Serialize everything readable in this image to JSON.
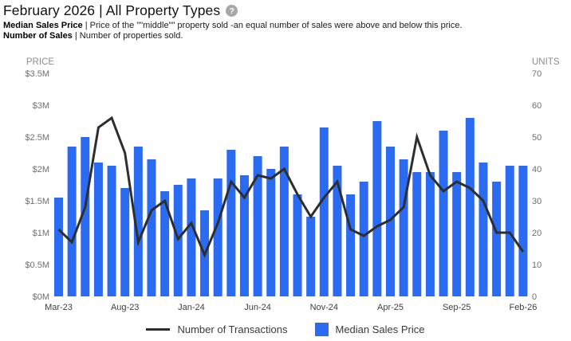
{
  "header": {
    "title": "February 2026 | All Property Types",
    "help_glyph": "?"
  },
  "description": {
    "line1_term": "Median Sales Price",
    "line1_def": "| Price of the \"\"middle\"\" property sold -an equal number of sales were above and below this price.",
    "line2_term": "Number of Sales",
    "line2_def": "| Number of properties sold."
  },
  "legend": {
    "items": [
      {
        "label": "Number of Transactions",
        "swatch": "line",
        "color": "#2e2e2e"
      },
      {
        "label": "Median Sales Price",
        "swatch": "square",
        "color": "#2a6bf2"
      }
    ]
  },
  "chart_data": {
    "type": "bar",
    "categories": [
      "Mar-23",
      "Apr-23",
      "May-23",
      "Jun-23",
      "Jul-23",
      "Aug-23",
      "Sep-23",
      "Oct-23",
      "Nov-23",
      "Dec-23",
      "Jan-24",
      "Feb-24",
      "Mar-24",
      "Apr-24",
      "May-24",
      "Jun-24",
      "Jul-24",
      "Aug-24",
      "Sep-24",
      "Oct-24",
      "Nov-24",
      "Dec-24",
      "Jan-25",
      "Feb-25",
      "Mar-25",
      "Apr-25",
      "May-25",
      "Jun-25",
      "Jul-25",
      "Aug-25",
      "Sep-25",
      "Oct-25",
      "Nov-25",
      "Dec-25",
      "Jan-26",
      "Feb-26"
    ],
    "x_tick_labels": [
      "Mar-23",
      "Aug-23",
      "Jan-24",
      "Jun-24",
      "Nov-24",
      "Apr-25",
      "Sep-25",
      "Feb-26"
    ],
    "x_tick_every": 5,
    "series": [
      {
        "name": "Median Sales Price",
        "type": "bar",
        "axis": "left",
        "unit": "$M",
        "color": "#2a6bf2",
        "values": [
          1.55,
          2.35,
          2.5,
          2.1,
          2.05,
          1.7,
          2.35,
          2.15,
          1.65,
          1.75,
          1.85,
          1.35,
          1.85,
          2.3,
          1.9,
          2.2,
          2.0,
          2.35,
          1.6,
          1.25,
          2.65,
          2.05,
          1.6,
          1.8,
          2.75,
          2.35,
          2.15,
          1.95,
          1.95,
          2.6,
          1.95,
          2.8,
          2.1,
          1.8,
          2.05,
          2.05
        ]
      },
      {
        "name": "Number of Transactions",
        "type": "line",
        "axis": "right",
        "unit": "units",
        "color": "#2e2e2e",
        "values": [
          21,
          17,
          28,
          53,
          56,
          45,
          17,
          27,
          30,
          18,
          23,
          13,
          23,
          36,
          31,
          38,
          37,
          40,
          32,
          25,
          31,
          36,
          21,
          19,
          22,
          24,
          28,
          50,
          38,
          33,
          36,
          34,
          30,
          20,
          20,
          14
        ]
      }
    ],
    "left_axis": {
      "title": "PRICE",
      "min": 0,
      "max": 3.5,
      "tick_labels_top_down": [
        "$3.5M",
        "$3M",
        "$2.5M",
        "$2M",
        "$1.5M",
        "$1M",
        "$0.5M",
        "$0M"
      ]
    },
    "right_axis": {
      "title": "UNITS",
      "min": 0,
      "max": 70,
      "tick_labels_top_down": [
        "70",
        "60",
        "50",
        "40",
        "30",
        "20",
        "10",
        "0"
      ]
    },
    "grid": false,
    "legend_position": "bottom"
  }
}
